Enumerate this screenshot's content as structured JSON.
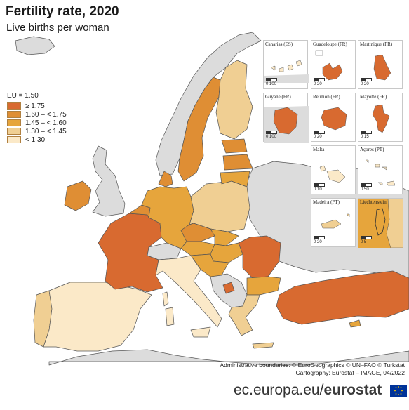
{
  "header": {
    "title": "Fertility rate, 2020",
    "subtitle": "Live births per woman"
  },
  "legend": {
    "eu_label": "EU = 1.50",
    "classes": [
      {
        "label": "≥ 1.75",
        "color": "#d86a30"
      },
      {
        "label": "1.60 – < 1.75",
        "color": "#df8e34"
      },
      {
        "label": "1.45 – < 1.60",
        "color": "#e6a53c"
      },
      {
        "label": "1.30 – < 1.45",
        "color": "#f0cf93"
      },
      {
        "label": "< 1.30",
        "color": "#fbe9c8"
      }
    ]
  },
  "colors": {
    "non_eu": "#dcdcdc",
    "sea": "#ffffff",
    "border": "#333333"
  },
  "insets": [
    {
      "label": "Canarias (ES)",
      "scale": "0  100"
    },
    {
      "label": "Guadeloupe (FR)",
      "scale": "0  20"
    },
    {
      "label": "Martinique (FR)",
      "scale": "0  20"
    },
    {
      "label": "Guyane (FR)",
      "scale": "0  100"
    },
    {
      "label": "Réunion (FR)",
      "scale": "0  20"
    },
    {
      "label": "Mayotte (FR)",
      "scale": "0  15"
    },
    {
      "label": "Malta",
      "scale": "0  10"
    },
    {
      "label": "Açores (PT)",
      "scale": "0  50"
    },
    {
      "label": "Madeira (PT)",
      "scale": "0  20"
    },
    {
      "label": "Liechtenstein",
      "scale": "0  5"
    }
  ],
  "credits": {
    "line1": "Administrative boundaries: © EuroGeographics © UN–FAO © Turkstat",
    "line2": "Cartography: Eurostat – IMAGE, 04/2022"
  },
  "footer": {
    "domain": "ec.europa.eu/",
    "brand": "eurostat"
  }
}
